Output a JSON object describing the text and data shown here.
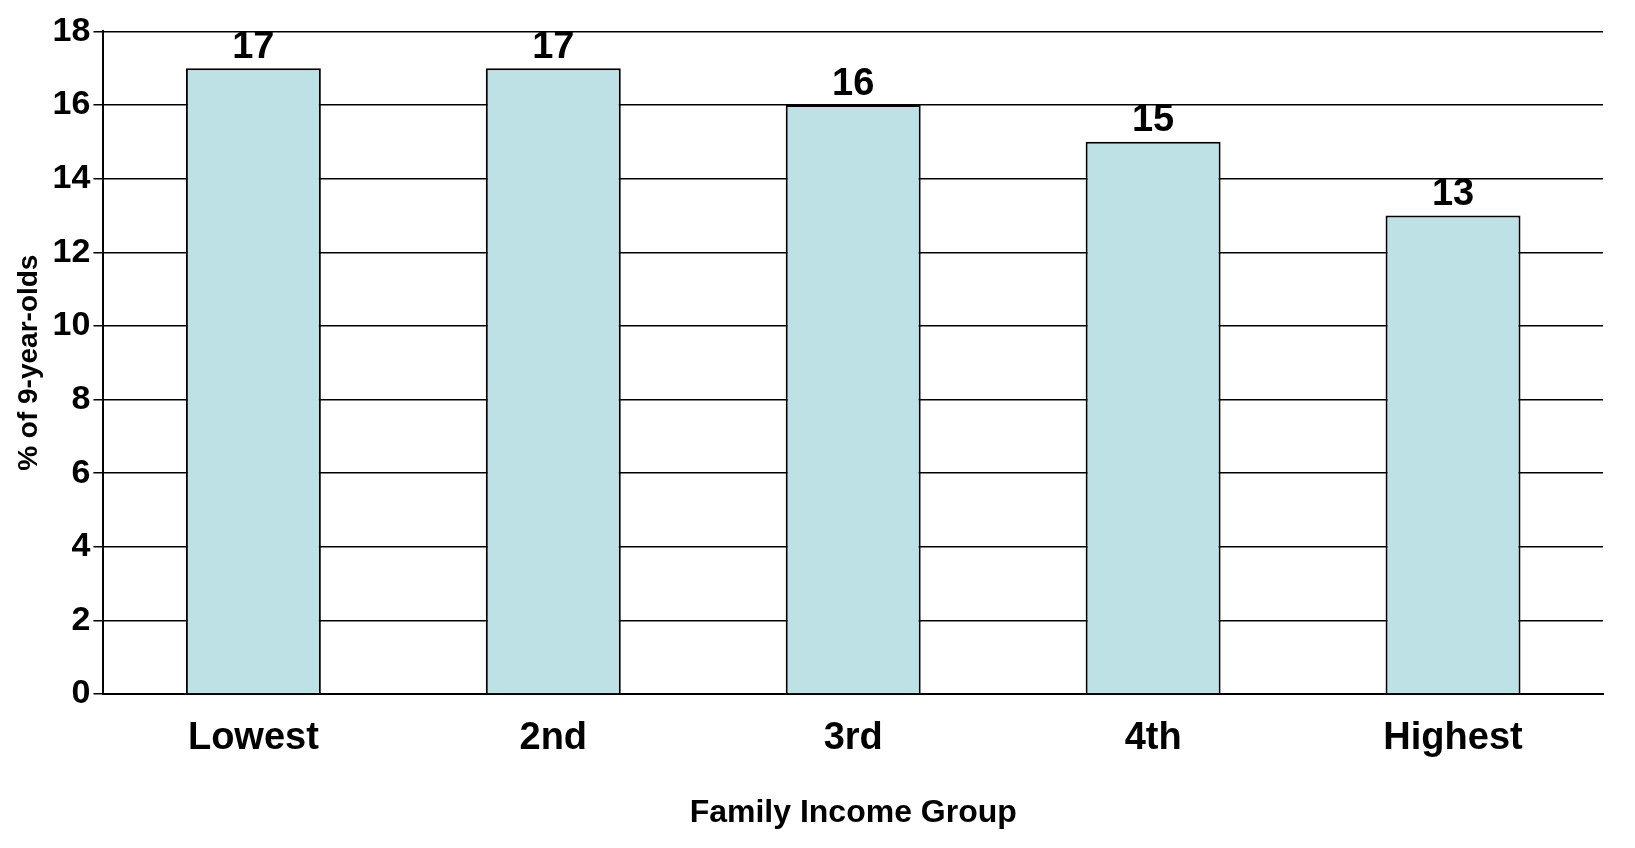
{
  "chart_data": {
    "type": "bar",
    "xlabel": "Family Income Group",
    "ylabel": "% of 9-year-olds",
    "categories": [
      "Lowest",
      "2nd",
      "3rd",
      "4th",
      "Highest"
    ],
    "values": [
      17,
      17,
      16,
      15,
      13
    ],
    "color": "#bde1e4",
    "ylim": [
      0,
      18
    ],
    "yticks": [
      0,
      2,
      4,
      6,
      8,
      10,
      12,
      14,
      16,
      18
    ],
    "grid": "y",
    "legend": false,
    "data_labels": true
  }
}
